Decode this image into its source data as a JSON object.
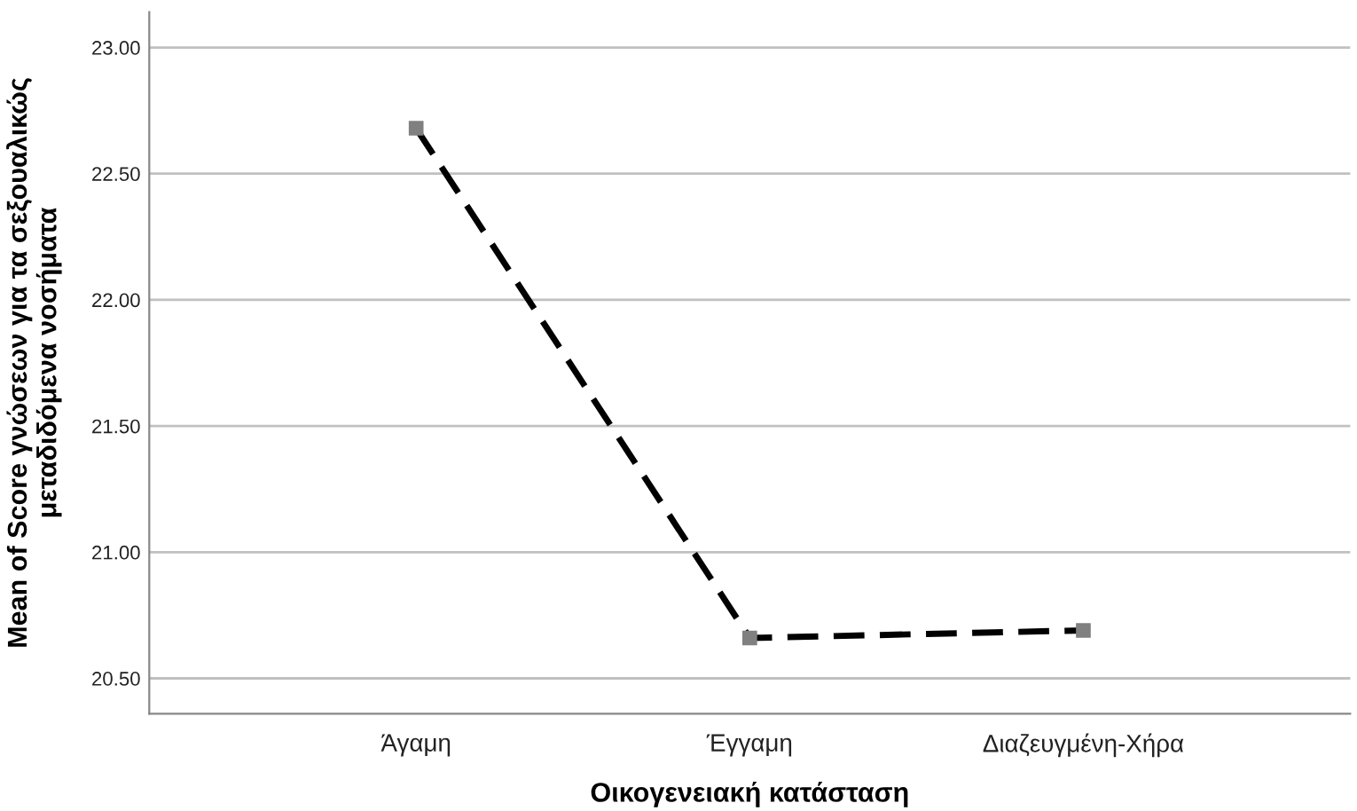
{
  "chart_data": {
    "type": "line",
    "xlabel": "Οικογενειακή κατάσταση",
    "ylabel": "Mean of Score γνώσεων για τα σεξουαλικώς\nμεταδιδόμενα νοσήματα",
    "categories": [
      "Άγαμη",
      "Έγγαμη",
      "Διαζευγμένη-Χήρα"
    ],
    "series": [
      {
        "color": "#000000",
        "values": [
          22.68,
          20.66,
          20.69
        ]
      }
    ],
    "ylim": [
      20.36,
      23.14
    ],
    "yticks": [
      {
        "value": 20.5,
        "label": "20.50"
      },
      {
        "value": 21.0,
        "label": "21.00"
      },
      {
        "value": 21.5,
        "label": "21.50"
      },
      {
        "value": 22.0,
        "label": "22.00"
      },
      {
        "value": 22.5,
        "label": "22.50"
      },
      {
        "value": 23.0,
        "label": "23.00"
      }
    ],
    "grid": "y",
    "marker": "square",
    "line_style": "dashed"
  }
}
